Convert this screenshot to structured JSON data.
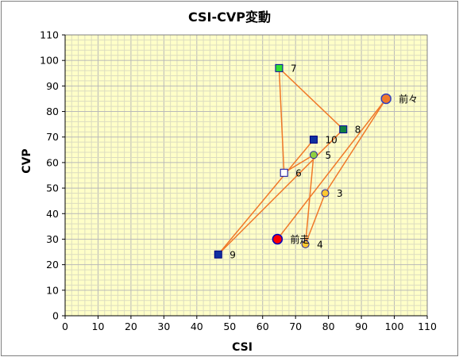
{
  "chart_data": {
    "type": "scatter",
    "title": "CSI-CVP変動",
    "xlabel": "CSI",
    "ylabel": "CVP",
    "xlim": [
      0,
      110
    ],
    "ylim": [
      0,
      110
    ],
    "xticks": [
      "0",
      "10",
      "20",
      "30",
      "40",
      "50",
      "60",
      "70",
      "80",
      "90",
      "100",
      "110"
    ],
    "yticks": [
      "0",
      "10",
      "20",
      "30",
      "40",
      "50",
      "60",
      "70",
      "80",
      "90",
      "100",
      "110"
    ],
    "grid": true,
    "line_color": "#f07828",
    "plot_background": "#ffffc8",
    "points": [
      {
        "label": "前々",
        "x": 97.5,
        "y": 85,
        "marker": "circle",
        "fill": "#f07828",
        "stroke": "#3040c0"
      },
      {
        "label": "前走",
        "x": 64.5,
        "y": 30,
        "marker": "circle",
        "fill": "#ff0000",
        "stroke": "#0000c0"
      },
      {
        "label": "3",
        "x": 79,
        "y": 48,
        "marker": "circle-small",
        "fill": "#ffc830",
        "stroke": "#2020a0"
      },
      {
        "label": "4",
        "x": 73,
        "y": 28,
        "marker": "circle-small",
        "fill": "#ffc830",
        "stroke": "#2020a0"
      },
      {
        "label": "5",
        "x": 75.5,
        "y": 63,
        "marker": "circle-small",
        "fill": "#90d040",
        "stroke": "#2020a0"
      },
      {
        "label": "6",
        "x": 66.5,
        "y": 56,
        "marker": "square",
        "fill": "#ffffff",
        "stroke": "#0000a0"
      },
      {
        "label": "7",
        "x": 65,
        "y": 97,
        "marker": "square",
        "fill": "#30e030",
        "stroke": "#0000a0"
      },
      {
        "label": "8",
        "x": 84.5,
        "y": 73,
        "marker": "square",
        "fill": "#108040",
        "stroke": "#0000a0"
      },
      {
        "label": "9",
        "x": 46.5,
        "y": 24,
        "marker": "square",
        "fill": "#1030a0",
        "stroke": "#000080"
      },
      {
        "label": "10",
        "x": 75.5,
        "y": 69,
        "marker": "square",
        "fill": "#1030a0",
        "stroke": "#000080"
      }
    ],
    "path_order": [
      "10",
      "9",
      "8",
      "7",
      "6",
      "5",
      "4",
      "3",
      "前々",
      "前走"
    ]
  }
}
